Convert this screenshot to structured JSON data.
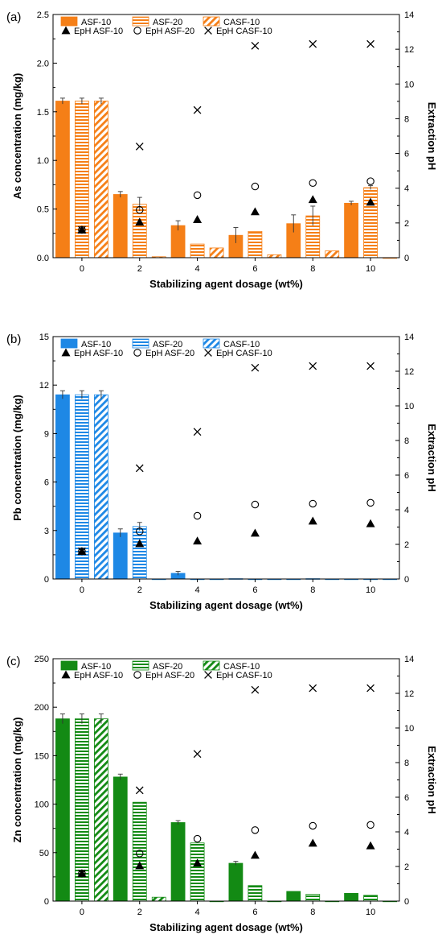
{
  "chart_data": [
    {
      "type": "bar",
      "panel_label": "(a)",
      "element": "As",
      "categories": [
        "0",
        "2",
        "4",
        "6",
        "8",
        "10"
      ],
      "xlabel": "Stabilizing agent dosage (wt%)",
      "ylabel": "As concentration (mg/kg)",
      "y2label": "Extraction pH",
      "ylim": [
        0,
        2.5
      ],
      "yticks": [
        "0.0",
        "0.5",
        "1.0",
        "1.5",
        "2.0",
        "2.5"
      ],
      "y2lim": [
        0,
        14
      ],
      "y2ticks": [
        "0",
        "2",
        "4",
        "6",
        "8",
        "10",
        "12",
        "14"
      ],
      "bar_color": "#f57f17",
      "series": [
        {
          "name": "ASF-10",
          "pattern": "solid",
          "values": [
            1.61,
            0.65,
            0.33,
            0.23,
            0.35,
            0.56
          ],
          "errors": [
            0.03,
            0.03,
            0.05,
            0.08,
            0.09,
            0.02
          ]
        },
        {
          "name": "ASF-20",
          "pattern": "horizontal",
          "values": [
            1.61,
            0.55,
            0.14,
            0.27,
            0.43,
            0.72
          ],
          "errors": [
            0.03,
            0.07,
            0.0,
            0.0,
            0.1,
            0.02
          ]
        },
        {
          "name": "CASF-10",
          "pattern": "diagonal",
          "values": [
            1.61,
            0.01,
            0.1,
            0.03,
            0.07,
            0.0
          ],
          "errors": [
            0.03,
            0.0,
            0.0,
            0.0,
            0.0,
            0.0
          ]
        }
      ],
      "ph_series": [
        {
          "name": "EpH ASF-10",
          "marker": "triangle",
          "values": [
            1.6,
            2.05,
            2.2,
            2.65,
            3.35,
            3.2
          ]
        },
        {
          "name": "EpH ASF-20",
          "marker": "circle",
          "values": [
            1.6,
            2.75,
            3.6,
            4.1,
            4.3,
            4.4
          ]
        },
        {
          "name": "EpH CASF-10",
          "marker": "cross",
          "values": [
            1.6,
            6.4,
            8.5,
            12.2,
            12.3,
            12.3
          ]
        }
      ]
    },
    {
      "type": "bar",
      "panel_label": "(b)",
      "element": "Pb",
      "categories": [
        "0",
        "2",
        "4",
        "6",
        "8",
        "10"
      ],
      "xlabel": "Stabilizing agent dosage (wt%)",
      "ylabel": "Pb concentration (mg/kg)",
      "y2label": "Extraction pH",
      "ylim": [
        0,
        15
      ],
      "yticks": [
        "0",
        "3",
        "6",
        "9",
        "12",
        "15"
      ],
      "y2lim": [
        0,
        14
      ],
      "y2ticks": [
        "0",
        "2",
        "4",
        "6",
        "8",
        "10",
        "12",
        "14"
      ],
      "bar_color": "#1e88e5",
      "series": [
        {
          "name": "ASF-10",
          "pattern": "solid",
          "values": [
            11.4,
            2.85,
            0.35,
            0.02,
            0.0,
            0.0
          ],
          "errors": [
            0.25,
            0.25,
            0.12,
            0.0,
            0.0,
            0.0
          ]
        },
        {
          "name": "ASF-20",
          "pattern": "horizontal",
          "values": [
            11.4,
            3.25,
            0.0,
            0.0,
            0.02,
            0.0
          ],
          "errors": [
            0.25,
            0.25,
            0.0,
            0.0,
            0.0,
            0.0
          ]
        },
        {
          "name": "CASF-10",
          "pattern": "diagonal",
          "values": [
            11.4,
            0.0,
            0.0,
            0.0,
            0.0,
            0.0
          ],
          "errors": [
            0.25,
            0.0,
            0.0,
            0.0,
            0.0,
            0.0
          ]
        }
      ],
      "ph_series": [
        {
          "name": "EpH ASF-10",
          "marker": "triangle",
          "values": [
            1.6,
            2.05,
            2.2,
            2.65,
            3.35,
            3.2
          ]
        },
        {
          "name": "EpH ASF-20",
          "marker": "circle",
          "values": [
            1.6,
            2.75,
            3.65,
            4.3,
            4.35,
            4.4
          ]
        },
        {
          "name": "EpH CASF-10",
          "marker": "cross",
          "values": [
            1.6,
            6.4,
            8.5,
            12.2,
            12.3,
            12.3
          ]
        }
      ]
    },
    {
      "type": "bar",
      "panel_label": "(c)",
      "element": "Zn",
      "categories": [
        "0",
        "2",
        "4",
        "6",
        "8",
        "10"
      ],
      "xlabel": "Stabilizing agent dosage (wt%)",
      "ylabel": "Zn concentration (mg/kg)",
      "y2label": "Extraction pH",
      "ylim": [
        0,
        250
      ],
      "yticks": [
        "0",
        "50",
        "100",
        "150",
        "200",
        "250"
      ],
      "y2lim": [
        0,
        14
      ],
      "y2ticks": [
        "0",
        "2",
        "4",
        "6",
        "8",
        "10",
        "12",
        "14"
      ],
      "bar_color": "#138a14",
      "series": [
        {
          "name": "ASF-10",
          "pattern": "solid",
          "values": [
            188,
            128,
            81,
            39,
            10,
            8
          ],
          "errors": [
            5,
            3,
            2,
            2,
            0,
            0
          ]
        },
        {
          "name": "ASF-20",
          "pattern": "horizontal",
          "values": [
            188,
            102,
            60,
            16,
            7,
            6
          ],
          "errors": [
            5,
            0,
            0,
            0,
            0,
            0
          ]
        },
        {
          "name": "CASF-10",
          "pattern": "diagonal",
          "values": [
            188,
            4,
            0,
            0,
            0,
            0
          ],
          "errors": [
            5,
            0,
            0,
            0,
            0,
            0
          ]
        }
      ],
      "ph_series": [
        {
          "name": "EpH ASF-10",
          "marker": "triangle",
          "values": [
            1.6,
            2.05,
            2.2,
            2.65,
            3.35,
            3.2
          ]
        },
        {
          "name": "EpH ASF-20",
          "marker": "circle",
          "values": [
            1.6,
            2.75,
            3.6,
            4.1,
            4.35,
            4.4
          ]
        },
        {
          "name": "EpH CASF-10",
          "marker": "cross",
          "values": [
            1.6,
            6.4,
            8.5,
            12.2,
            12.3,
            12.3
          ]
        }
      ]
    }
  ]
}
